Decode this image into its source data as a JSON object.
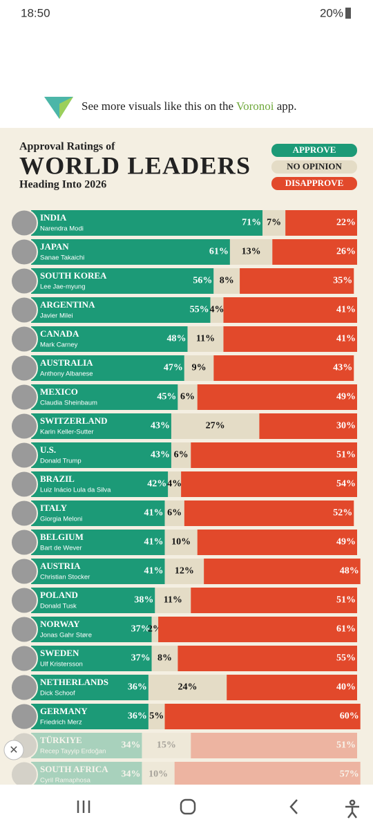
{
  "status_bar": {
    "time": "18:50",
    "battery": "20%"
  },
  "banner": {
    "text": "See more visuals like this on the",
    "brand": "Voronoi",
    "suffix": "app."
  },
  "chart_data": {
    "type": "stacked-bar-horizontal",
    "title_top": "Approval Ratings of",
    "title": "WORLD LEADERS",
    "subtitle": "Heading Into 2026",
    "categories": [
      "INDIA",
      "JAPAN",
      "SOUTH KOREA",
      "ARGENTINA",
      "CANADA",
      "AUSTRALIA",
      "MEXICO",
      "SWITZERLAND",
      "U.S.",
      "BRAZIL",
      "ITALY",
      "BELGIUM",
      "AUSTRIA",
      "POLAND",
      "NORWAY",
      "SWEDEN",
      "NETHERLANDS",
      "GERMANY",
      "TÜRKIYE",
      "SOUTH AFRICA"
    ],
    "leaders": [
      "Narendra Modi",
      "Sanae Takaichi",
      "Lee Jae-myung",
      "Javier Milei",
      "Mark Carney",
      "Anthony Albanese",
      "Claudia Sheinbaum",
      "Karin Keller-Sutter",
      "Donald Trump",
      "Luiz Inácio Lula da Silva",
      "Giorgia Meloni",
      "Bart de Wever",
      "Christian Stocker",
      "Donald Tusk",
      "Jonas Gahr Støre",
      "Ulf Kristersson",
      "Dick Schoof",
      "Friedrich Merz",
      "Recep Tayyip Erdoğan",
      "Cyril Ramaphosa"
    ],
    "xlim": [
      0,
      100
    ],
    "series": [
      {
        "name": "APPROVE",
        "color": "#1c9a77",
        "values": [
          71,
          61,
          56,
          55,
          48,
          47,
          45,
          43,
          43,
          42,
          41,
          41,
          41,
          38,
          37,
          37,
          36,
          36,
          34,
          34
        ],
        "value_labels": [
          "71%",
          "61%",
          "56%",
          "55%",
          "48%",
          "47%",
          "45%",
          "43%",
          "43%",
          "42%",
          "41%",
          "41%",
          "41%",
          "38%",
          "37%",
          "37%",
          "36%",
          "36%",
          "34%",
          "34%"
        ]
      },
      {
        "name": "NO OPINION",
        "color": "#e4dcc6",
        "values": [
          7,
          13,
          8,
          4,
          11,
          9,
          6,
          27,
          6,
          4,
          6,
          10,
          12,
          11,
          2,
          8,
          24,
          5,
          15,
          10
        ],
        "value_labels": [
          "7%",
          "13%",
          "8%",
          "4%",
          "11%",
          "9%",
          "6%",
          "27%",
          "6%",
          "4%",
          "6%",
          "10%",
          "12%",
          "11%",
          "2%",
          "8%",
          "24%",
          "5%",
          "15%",
          "10%"
        ]
      },
      {
        "name": "DISAPPROVE",
        "color": "#e2492b",
        "values": [
          22,
          26,
          35,
          41,
          41,
          43,
          49,
          30,
          51,
          54,
          52,
          49,
          48,
          51,
          61,
          55,
          40,
          60,
          51,
          57
        ],
        "value_labels": [
          "22%",
          "26%",
          "35%",
          "41%",
          "41%",
          "43%",
          "49%",
          "30%",
          "51%",
          "54%",
          "52%",
          "49%",
          "48%",
          "51%",
          "61%",
          "55%",
          "40%",
          "60%",
          "51%",
          "57%"
        ]
      }
    ]
  }
}
